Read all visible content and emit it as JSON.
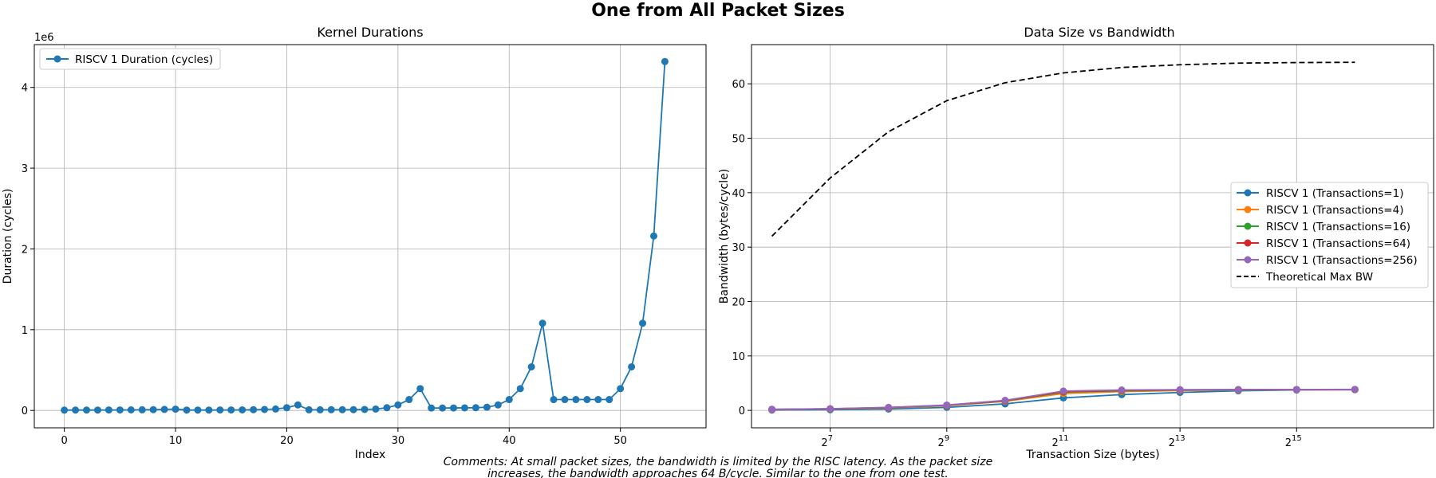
{
  "suptitle": "One from All Packet Sizes",
  "comment_lines": [
    "Comments: At small packet sizes, the bandwidth is limited by the RISC latency. As the packet size",
    "increases, the bandwidth approaches 64 B/cycle. Similar to the one from one test."
  ],
  "colors": {
    "blue": "#1f77b4",
    "orange": "#ff7f0e",
    "green": "#2ca02c",
    "red": "#d62728",
    "purple": "#9467bd",
    "black": "#000000",
    "grid": "#b0b0b0"
  },
  "chart_data": [
    {
      "type": "line",
      "title": "Kernel Durations",
      "xlabel": "Index",
      "ylabel": "Duration (cycles)",
      "offset_label": "1e6",
      "xlim": [
        -2.7,
        57.7
      ],
      "ylim": [
        -0.215,
        4.53
      ],
      "xticks": [
        0,
        10,
        20,
        30,
        40,
        50
      ],
      "yticks": [
        0,
        1,
        2,
        3,
        4
      ],
      "grid": true,
      "legend": "top-left",
      "series": [
        {
          "name": "RISCV 1 Duration (cycles)",
          "color": "#1f77b4",
          "marker": "circle",
          "x": [
            0,
            1,
            2,
            3,
            4,
            5,
            6,
            7,
            8,
            9,
            10,
            11,
            12,
            13,
            14,
            15,
            16,
            17,
            18,
            19,
            20,
            21,
            22,
            23,
            24,
            25,
            26,
            27,
            28,
            29,
            30,
            31,
            32,
            33,
            34,
            35,
            36,
            37,
            38,
            39,
            40,
            41,
            42,
            43,
            44,
            45,
            46,
            47,
            48,
            49,
            50,
            51,
            52,
            53,
            54
          ],
          "values": [
            0.004,
            0.005,
            0.005,
            0.005,
            0.006,
            0.006,
            0.007,
            0.008,
            0.01,
            0.013,
            0.016,
            0.005,
            0.005,
            0.005,
            0.006,
            0.006,
            0.007,
            0.009,
            0.012,
            0.018,
            0.034,
            0.068,
            0.008,
            0.008,
            0.009,
            0.009,
            0.01,
            0.012,
            0.017,
            0.034,
            0.068,
            0.135,
            0.27,
            0.03,
            0.03,
            0.031,
            0.032,
            0.034,
            0.04,
            0.068,
            0.135,
            0.27,
            0.54,
            1.08,
            0.135,
            0.135,
            0.135,
            0.135,
            0.135,
            0.135,
            0.27,
            0.54,
            1.08,
            2.16,
            4.32
          ]
        }
      ]
    },
    {
      "type": "line",
      "title": "Data Size vs Bandwidth",
      "xlabel": "Transaction Size (bytes)",
      "ylabel": "Bandwidth (bytes/cycle)",
      "x_scale": "log2",
      "xlim_log2": [
        5.65,
        17.35
      ],
      "ylim": [
        -3.2,
        67.2
      ],
      "xtick_labels": [
        [
          "2",
          "7"
        ],
        [
          "2",
          "9"
        ],
        [
          "2",
          "11"
        ],
        [
          "2",
          "13"
        ],
        [
          "2",
          "15"
        ]
      ],
      "xtick_exponents": [
        7,
        9,
        11,
        13,
        15
      ],
      "yticks": [
        0,
        10,
        20,
        30,
        40,
        50,
        60
      ],
      "grid": true,
      "legend": "center-right",
      "x_log2": [
        6,
        7,
        8,
        9,
        10,
        11,
        12,
        13,
        14,
        15,
        16
      ],
      "series": [
        {
          "name": "RISCV 1 (Transactions=1)",
          "color": "#1f77b4",
          "marker": "circle",
          "dashed": false,
          "values": [
            0.06,
            0.12,
            0.25,
            0.55,
            1.2,
            2.3,
            2.9,
            3.3,
            3.6,
            3.75,
            3.8
          ]
        },
        {
          "name": "RISCV 1 (Transactions=4)",
          "color": "#ff7f0e",
          "marker": "circle",
          "dashed": false,
          "values": [
            0.15,
            0.25,
            0.45,
            0.85,
            1.65,
            3.1,
            3.45,
            3.65,
            3.75,
            3.8,
            3.8
          ]
        },
        {
          "name": "RISCV 1 (Transactions=16)",
          "color": "#2ca02c",
          "marker": "circle",
          "dashed": false,
          "values": [
            0.18,
            0.28,
            0.5,
            0.92,
            1.75,
            3.35,
            3.6,
            3.75,
            3.8,
            3.82,
            3.83
          ]
        },
        {
          "name": "RISCV 1 (Transactions=64)",
          "color": "#d62728",
          "marker": "circle",
          "dashed": false,
          "values": [
            0.19,
            0.29,
            0.52,
            0.95,
            1.8,
            3.45,
            3.68,
            3.78,
            3.82,
            3.83,
            3.84
          ]
        },
        {
          "name": "RISCV 1 (Transactions=256)",
          "color": "#9467bd",
          "marker": "circle",
          "dashed": false,
          "values": [
            0.2,
            0.3,
            0.55,
            0.98,
            1.85,
            3.55,
            3.75,
            3.8,
            3.83,
            3.84,
            3.85
          ]
        },
        {
          "name": "Theoretical Max BW",
          "color": "#000000",
          "marker": "none",
          "dashed": true,
          "values": [
            32.0,
            42.7,
            51.2,
            56.9,
            60.2,
            62.0,
            63.0,
            63.5,
            63.8,
            63.9,
            63.95
          ]
        }
      ]
    }
  ]
}
